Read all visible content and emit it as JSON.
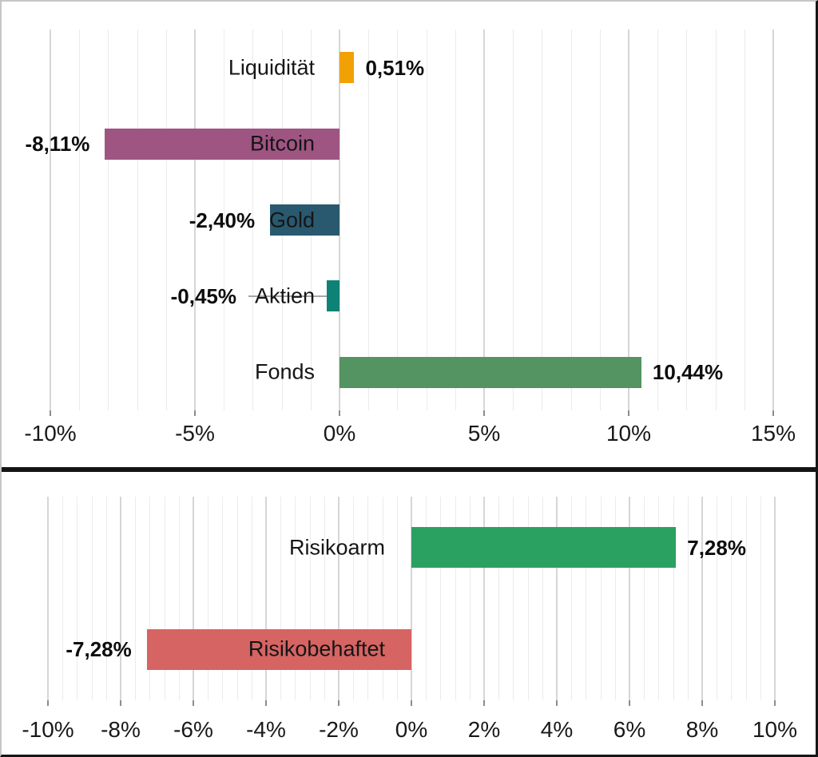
{
  "page": {
    "background": "#ffffff",
    "frame_border_dark": "#161616",
    "frame_border_light": "#c6c6c6",
    "divider_color": "#141414"
  },
  "chart_data": [
    {
      "id": "asset-performance",
      "type": "bar",
      "orientation": "horizontal",
      "title": "",
      "categories": [
        "Liquidität",
        "Bitcoin",
        "Gold",
        "Aktien",
        "Fonds"
      ],
      "values": [
        0.51,
        -8.11,
        -2.4,
        -0.45,
        10.44
      ],
      "data_labels": [
        "0,51%",
        "-8,11%",
        "-2,40%",
        "-0,45%",
        "10,44%"
      ],
      "bar_colors": [
        "#F2A104",
        "#9F5582",
        "#29596F",
        "#0F8276",
        "#549362"
      ],
      "leader_line_category_index": 3,
      "axis": {
        "min": -10,
        "max": 15,
        "major_unit": 5,
        "minor_unit": 1,
        "ticks": [
          {
            "value": -10,
            "label": "-10%"
          },
          {
            "value": -5,
            "label": "-5%"
          },
          {
            "value": 0,
            "label": "0%"
          },
          {
            "value": 5,
            "label": "5%"
          },
          {
            "value": 10,
            "label": "10%"
          },
          {
            "value": 15,
            "label": "15%"
          }
        ]
      },
      "gridlines": {
        "major_color": "#d6d6d6",
        "minor_color": "#ebebeb",
        "grid_on": true
      },
      "legend": "none"
    },
    {
      "id": "risk-split",
      "type": "bar",
      "orientation": "horizontal",
      "title": "",
      "categories": [
        "Risikoarm",
        "Risikobehaftet"
      ],
      "values": [
        7.28,
        -7.28
      ],
      "data_labels": [
        "7,28%",
        "-7,28%"
      ],
      "bar_colors": [
        "#2BA161",
        "#D56462"
      ],
      "leader_line_category_index": null,
      "axis": {
        "min": -10,
        "max": 10,
        "major_unit": 2,
        "minor_unit": 0.4,
        "ticks": [
          {
            "value": -10,
            "label": "-10%"
          },
          {
            "value": -8,
            "label": "-8%"
          },
          {
            "value": -6,
            "label": "-6%"
          },
          {
            "value": -4,
            "label": "-4%"
          },
          {
            "value": -2,
            "label": "-2%"
          },
          {
            "value": 0,
            "label": "0%"
          },
          {
            "value": 2,
            "label": "2%"
          },
          {
            "value": 4,
            "label": "4%"
          },
          {
            "value": 6,
            "label": "6%"
          },
          {
            "value": 8,
            "label": "8%"
          },
          {
            "value": 10,
            "label": "10%"
          }
        ]
      },
      "gridlines": {
        "major_color": "#d6d6d6",
        "minor_color": "#ebebeb",
        "grid_on": true
      },
      "legend": "none"
    }
  ]
}
